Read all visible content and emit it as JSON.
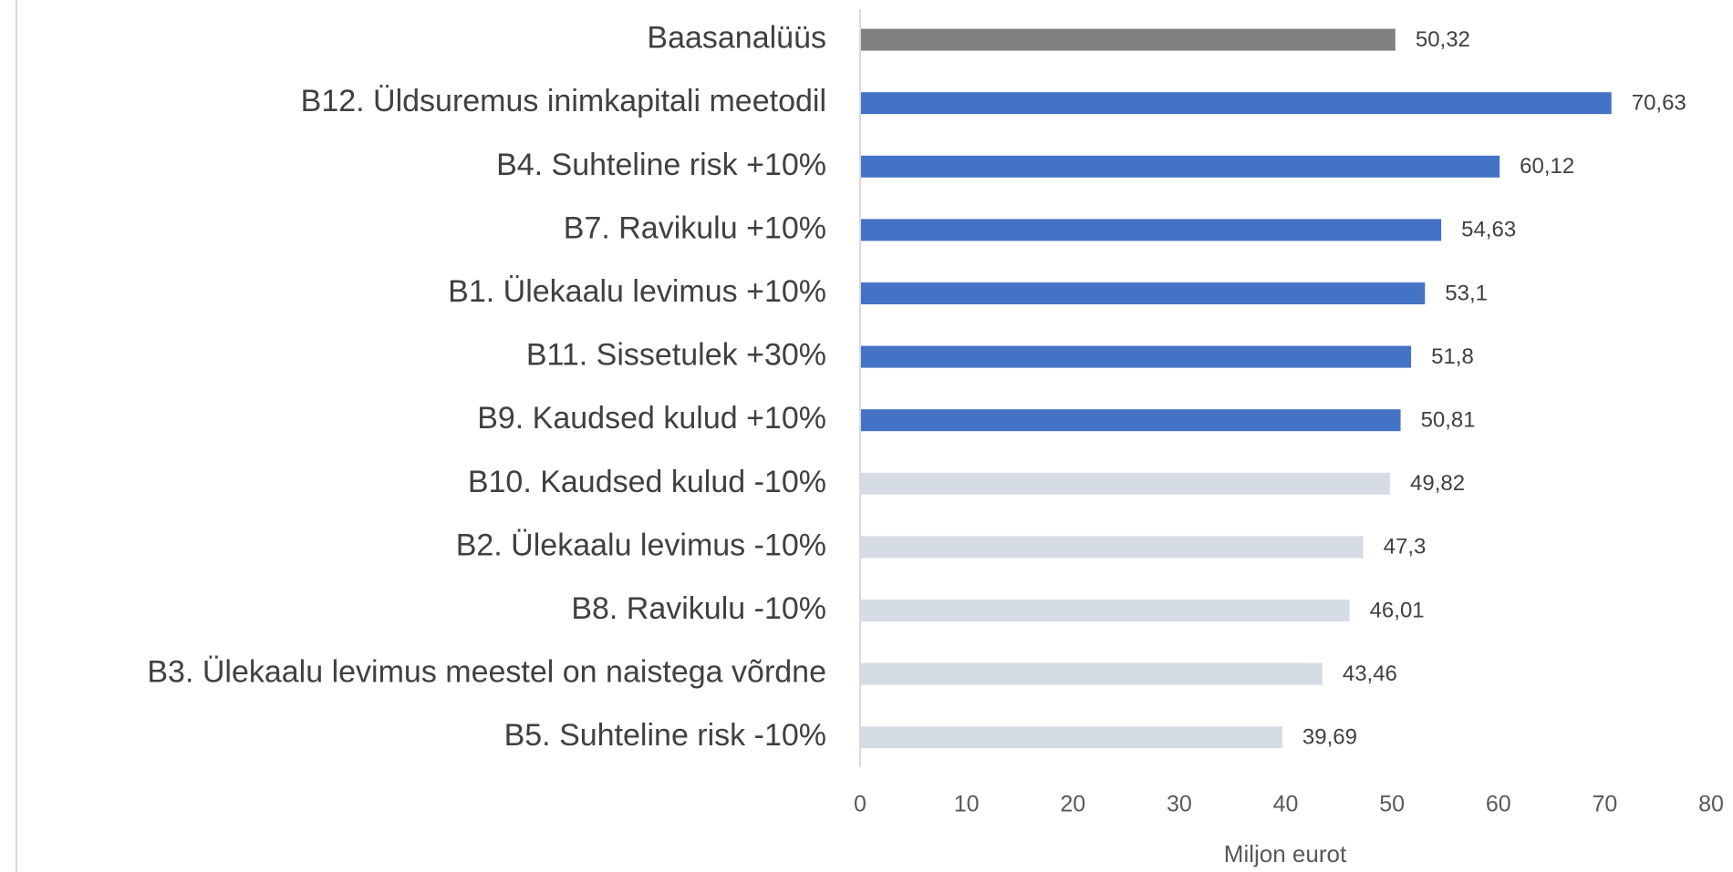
{
  "chart_data": {
    "type": "bar",
    "orientation": "horizontal",
    "categories": [
      "Baasanalüüs",
      "B12. Üldsuremus inimkapitali meetodil",
      "B4. Suhteline risk +10%",
      "B7. Ravikulu +10%",
      "B1. Ülekaalu levimus +10%",
      "B11. Sissetulek +30%",
      "B9. Kaudsed kulud +10%",
      "B10. Kaudsed kulud -10%",
      "B2. Ülekaalu levimus -10%",
      "B8. Ravikulu -10%",
      "B3. Ülekaalu levimus meestel on naistega võrdne",
      "B5. Suhteline risk -10%"
    ],
    "values": [
      50.32,
      70.63,
      60.12,
      54.63,
      53.1,
      51.8,
      50.81,
      49.82,
      47.3,
      46.01,
      43.46,
      39.69
    ],
    "value_labels": [
      "50,32",
      "70,63",
      "60,12",
      "54,63",
      "53,1",
      "51,8",
      "50,81",
      "49,82",
      "47,3",
      "46,01",
      "43,46",
      "39,69"
    ],
    "colors": [
      "#808080",
      "#4472c4",
      "#4472c4",
      "#4472c4",
      "#4472c4",
      "#4472c4",
      "#4472c4",
      "#d6dce5",
      "#d6dce5",
      "#d6dce5",
      "#d6dce5",
      "#d6dce5"
    ],
    "xlabel": "Miljon eurot",
    "xlim": [
      0,
      80
    ],
    "xticks": [
      0,
      10,
      20,
      30,
      40,
      50,
      60,
      70,
      80
    ],
    "grid": false
  }
}
